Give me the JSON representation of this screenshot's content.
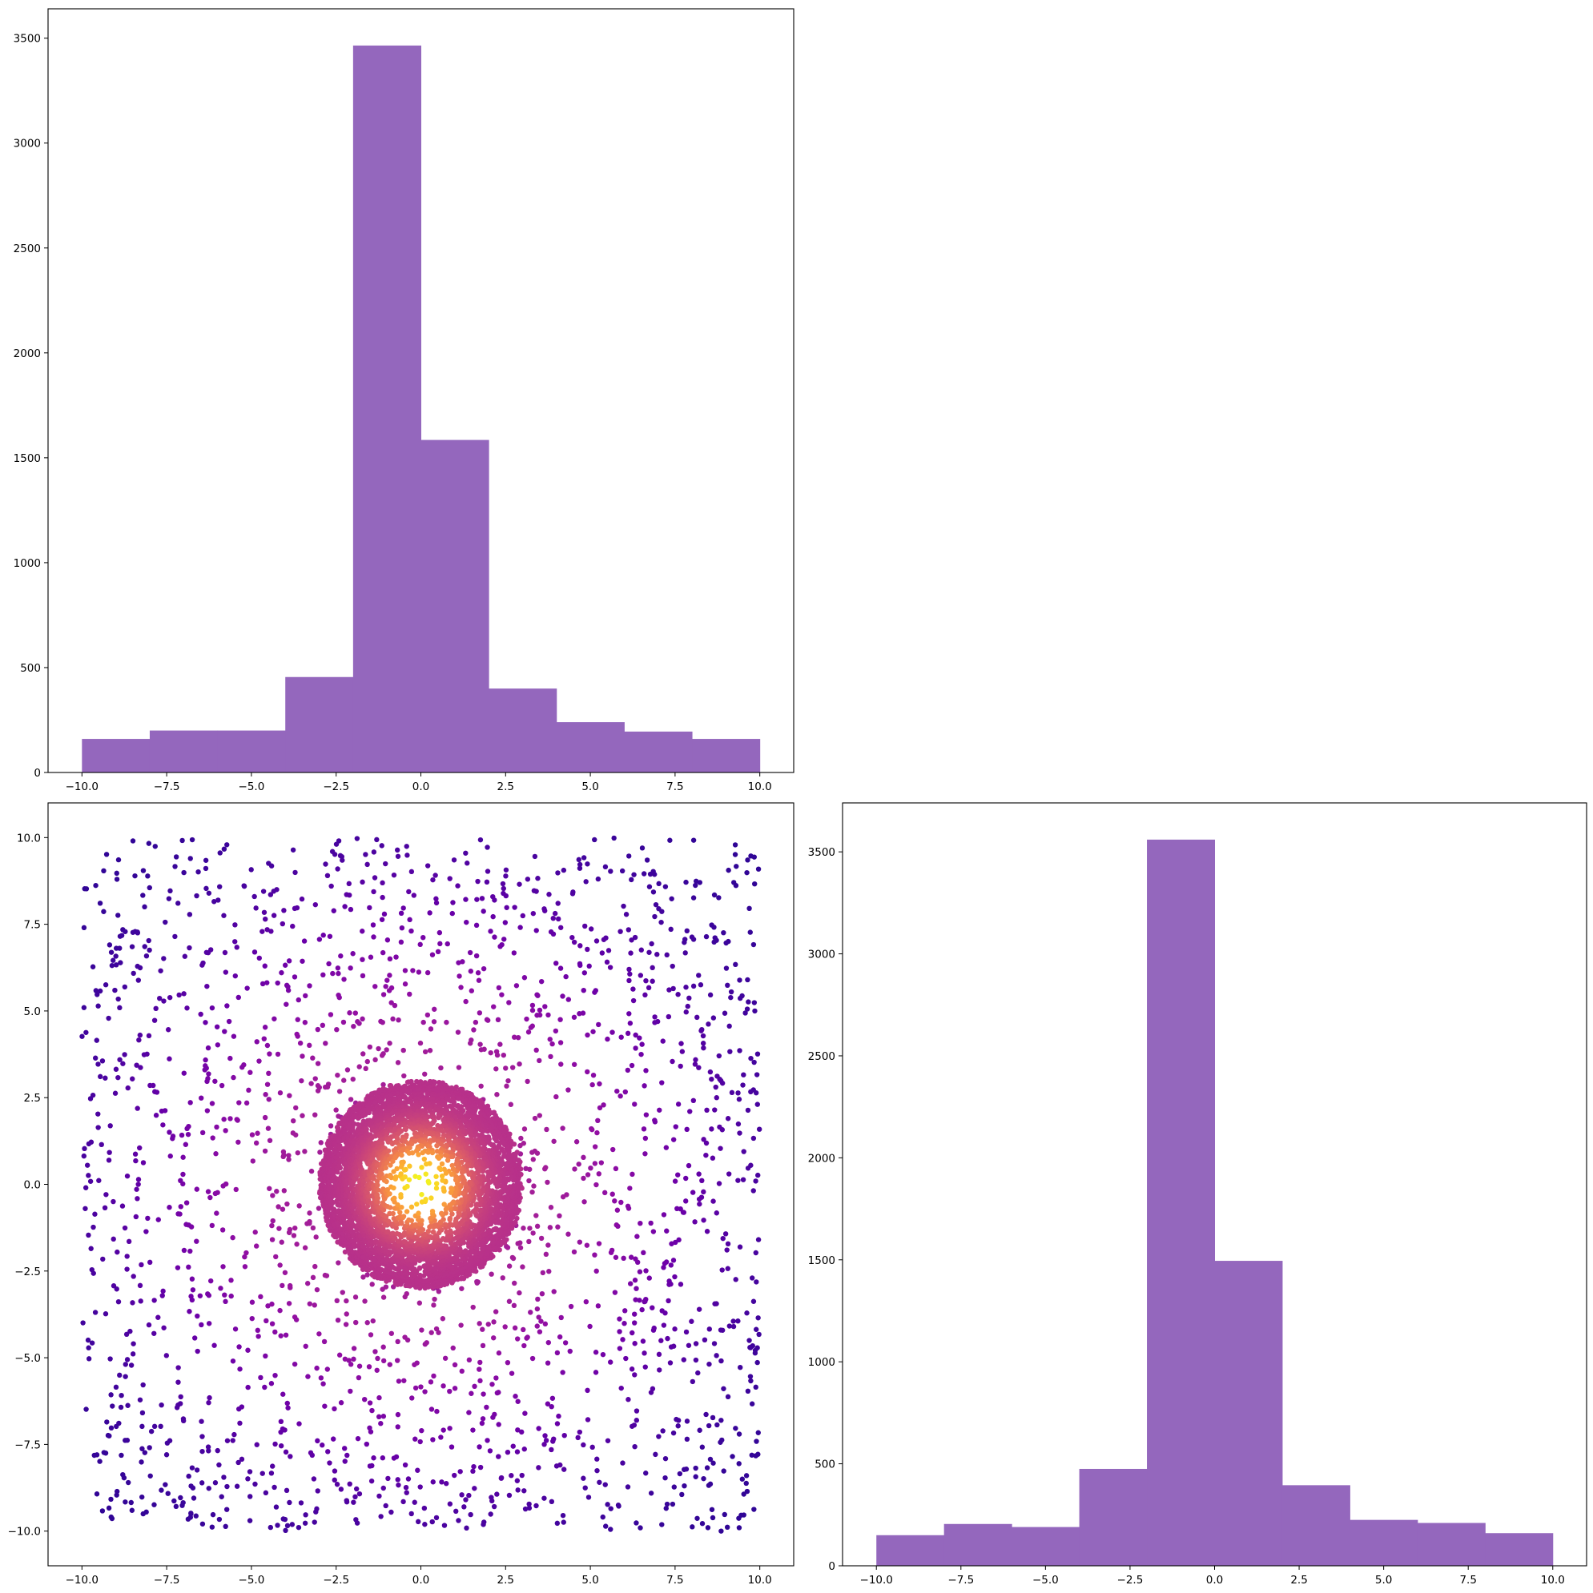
{
  "chart_data": [
    {
      "type": "bar",
      "panel": "top-left",
      "title": "",
      "xlabel": "",
      "ylabel": "",
      "bin_edges": [
        -10,
        -8,
        -6,
        -4,
        -2,
        0,
        2,
        4,
        6,
        8,
        10
      ],
      "values": [
        160,
        200,
        200,
        455,
        3465,
        1585,
        400,
        240,
        195,
        160
      ],
      "color": "#9467bd",
      "xlim": [
        -11,
        11
      ],
      "ylim": [
        0,
        3640
      ],
      "xticks": [
        -10.0,
        -7.5,
        -5.0,
        -2.5,
        0.0,
        2.5,
        5.0,
        7.5,
        10.0
      ],
      "xtick_labels": [
        "−10.0",
        "−7.5",
        "−5.0",
        "−2.5",
        "0.0",
        "2.5",
        "5.0",
        "7.5",
        "10.0"
      ],
      "yticks": [
        0,
        500,
        1000,
        1500,
        2000,
        2500,
        3000,
        3500
      ],
      "ytick_labels": [
        "0",
        "500",
        "1000",
        "1500",
        "2000",
        "2500",
        "3000",
        "3500"
      ]
    },
    {
      "type": "scatter",
      "panel": "bottom-left",
      "title": "",
      "xlabel": "",
      "ylabel": "",
      "colormap": "plasma",
      "color_encodes": "point density (highest at center)",
      "xlim": [
        -11,
        11
      ],
      "ylim": [
        -11,
        11
      ],
      "xticks": [
        -10.0,
        -7.5,
        -5.0,
        -2.5,
        0.0,
        2.5,
        5.0,
        7.5,
        10.0
      ],
      "xtick_labels": [
        "−10.0",
        "−7.5",
        "−5.0",
        "−2.5",
        "0.0",
        "2.5",
        "5.0",
        "7.5",
        "10.0"
      ],
      "yticks": [
        -10.0,
        -7.5,
        -5.0,
        -2.5,
        0.0,
        2.5,
        5.0,
        7.5,
        10.0
      ],
      "ytick_labels": [
        "−10.0",
        "−7.5",
        "−5.0",
        "−2.5",
        "0.0",
        "2.5",
        "5.0",
        "7.5",
        "10.0"
      ],
      "distribution": {
        "uniform_background": {
          "count": 2000,
          "x_range": [
            -10,
            10
          ],
          "y_range": [
            -10,
            10
          ]
        },
        "central_cluster": {
          "count": 5000,
          "center": [
            0,
            0
          ],
          "radius": 3
        }
      }
    },
    {
      "type": "bar",
      "panel": "bottom-right",
      "title": "",
      "xlabel": "",
      "ylabel": "",
      "bin_edges": [
        -10,
        -8,
        -6,
        -4,
        -2,
        0,
        2,
        4,
        6,
        8,
        10
      ],
      "values": [
        150,
        205,
        190,
        475,
        3560,
        1495,
        395,
        225,
        210,
        160
      ],
      "color": "#9467bd",
      "xlim": [
        -11,
        11
      ],
      "ylim": [
        0,
        3740
      ],
      "xticks": [
        -10.0,
        -7.5,
        -5.0,
        -2.5,
        0.0,
        2.5,
        5.0,
        7.5,
        10.0
      ],
      "xtick_labels": [
        "−10.0",
        "−7.5",
        "−5.0",
        "−2.5",
        "0.0",
        "2.5",
        "5.0",
        "7.5",
        "10.0"
      ],
      "yticks": [
        0,
        500,
        1000,
        1500,
        2000,
        2500,
        3000,
        3500
      ],
      "ytick_labels": [
        "0",
        "500",
        "1000",
        "1500",
        "2000",
        "2500",
        "3000",
        "3500"
      ]
    }
  ]
}
